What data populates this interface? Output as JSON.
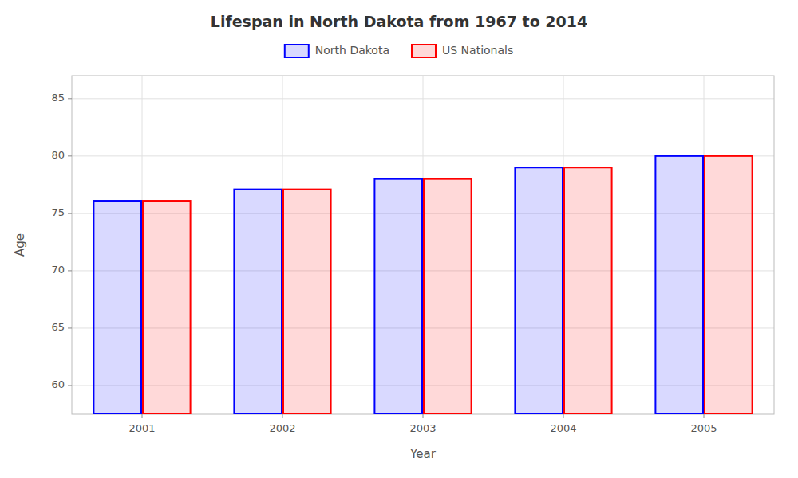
{
  "chart_data": {
    "type": "bar",
    "title": "Lifespan in North Dakota from 1967 to 2014",
    "x_label": "Year",
    "y_label": "Age",
    "categories": [
      "2001",
      "2002",
      "2003",
      "2004",
      "2005"
    ],
    "series": [
      {
        "name": "North Dakota",
        "color": "#0000ff",
        "values": [
          76.1,
          77.1,
          78.0,
          79.0,
          80.0
        ]
      },
      {
        "name": "US Nationals",
        "color": "#ff0000",
        "values": [
          76.1,
          77.1,
          78.0,
          79.0,
          80.0
        ]
      }
    ],
    "ylim": [
      57.5,
      87
    ],
    "yticks": [
      60,
      65,
      70,
      75,
      80,
      85
    ],
    "grid": true,
    "legend": "top"
  }
}
